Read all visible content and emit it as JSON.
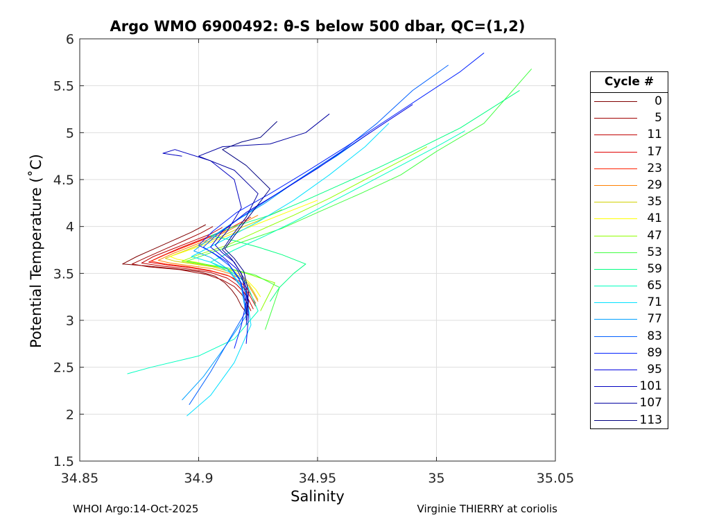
{
  "chart_data": {
    "type": "line",
    "title": "Argo WMO 6900492: θ-S below 500 dbar,  QC=(1,2)",
    "xlabel": "Salinity",
    "ylabel": "Potential Temperature (˚C)",
    "xlim": [
      34.85,
      35.05
    ],
    "ylim": [
      1.5,
      6
    ],
    "xticks": [
      34.85,
      34.9,
      34.95,
      35,
      35.05
    ],
    "xtick_labels": [
      "34.85",
      "34.9",
      "34.95",
      "35",
      "35.05"
    ],
    "yticks": [
      1.5,
      2,
      2.5,
      3,
      3.5,
      4,
      4.5,
      5,
      5.5,
      6
    ],
    "ytick_labels": [
      "1.5",
      "2",
      "2.5",
      "3",
      "3.5",
      "4",
      "4.5",
      "5",
      "5.5",
      "6"
    ],
    "grid": true,
    "legend_title": "Cycle #",
    "legend_position": "outside-right",
    "series": [
      {
        "name": "0",
        "color": "#800000",
        "s": [
          34.921,
          34.918,
          34.916,
          34.914,
          34.911,
          34.907,
          34.9,
          34.89,
          34.878,
          34.868,
          34.874,
          34.882,
          34.89,
          34.897,
          34.903
        ],
        "t": [
          3.05,
          3.15,
          3.25,
          3.32,
          3.4,
          3.47,
          3.52,
          3.55,
          3.58,
          3.6,
          3.68,
          3.77,
          3.86,
          3.94,
          4.02
        ]
      },
      {
        "name": "5",
        "color": "#a00000",
        "s": [
          34.922,
          34.92,
          34.918,
          34.915,
          34.91,
          34.903,
          34.892,
          34.879,
          34.872,
          34.878,
          34.886,
          34.894,
          34.901,
          34.906
        ],
        "t": [
          3.1,
          3.2,
          3.28,
          3.36,
          3.43,
          3.49,
          3.54,
          3.57,
          3.6,
          3.67,
          3.76,
          3.85,
          3.93,
          4.0
        ]
      },
      {
        "name": "11",
        "color": "#c00000",
        "s": [
          34.923,
          34.921,
          34.919,
          34.916,
          34.912,
          34.905,
          34.895,
          34.884,
          34.876,
          34.881,
          34.889,
          34.897,
          34.905,
          34.91
        ],
        "t": [
          3.12,
          3.22,
          3.3,
          3.38,
          3.45,
          3.51,
          3.55,
          3.58,
          3.61,
          3.68,
          3.76,
          3.84,
          3.92,
          3.99
        ]
      },
      {
        "name": "17",
        "color": "#e00000",
        "s": [
          34.924,
          34.922,
          34.92,
          34.917,
          34.913,
          34.906,
          34.897,
          34.887,
          34.879,
          34.884,
          34.892,
          34.9,
          34.908,
          34.913
        ],
        "t": [
          3.15,
          3.24,
          3.32,
          3.4,
          3.47,
          3.52,
          3.56,
          3.59,
          3.62,
          3.68,
          3.77,
          3.85,
          3.93,
          4.0
        ]
      },
      {
        "name": "23",
        "color": "#ff2000",
        "s": [
          34.924,
          34.922,
          34.92,
          34.917,
          34.912,
          34.905,
          34.896,
          34.886,
          34.88,
          34.886,
          34.894,
          34.902,
          34.91,
          34.916,
          34.922
        ],
        "t": [
          3.18,
          3.27,
          3.35,
          3.42,
          3.48,
          3.53,
          3.57,
          3.6,
          3.63,
          3.7,
          3.78,
          3.86,
          3.94,
          4.02,
          4.1
        ]
      },
      {
        "name": "29",
        "color": "#ff8000",
        "s": [
          34.925,
          34.923,
          34.921,
          34.918,
          34.913,
          34.906,
          34.897,
          34.888,
          34.883,
          34.889,
          34.897,
          34.905,
          34.912,
          34.918,
          34.925
        ],
        "t": [
          3.2,
          3.29,
          3.37,
          3.44,
          3.5,
          3.55,
          3.58,
          3.61,
          3.64,
          3.71,
          3.79,
          3.87,
          3.95,
          4.03,
          4.12
        ]
      },
      {
        "name": "35",
        "color": "#d0d000",
        "s": [
          34.925,
          34.923,
          34.921,
          34.918,
          34.913,
          34.906,
          34.898,
          34.89,
          34.886,
          34.893,
          34.901,
          34.909,
          34.916,
          34.925,
          34.935
        ],
        "t": [
          3.22,
          3.31,
          3.39,
          3.46,
          3.52,
          3.57,
          3.6,
          3.63,
          3.66,
          3.73,
          3.81,
          3.89,
          3.97,
          4.06,
          4.18
        ]
      },
      {
        "name": "41",
        "color": "#ffff00",
        "s": [
          34.926,
          34.924,
          34.921,
          34.918,
          34.913,
          34.906,
          34.899,
          34.891,
          34.888,
          34.896,
          34.905,
          34.914,
          34.924,
          34.936,
          34.95
        ],
        "t": [
          3.25,
          3.33,
          3.41,
          3.48,
          3.54,
          3.58,
          3.62,
          3.65,
          3.68,
          3.75,
          3.83,
          3.92,
          4.02,
          4.14,
          4.28
        ]
      },
      {
        "name": "47",
        "color": "#90ff00",
        "s": [
          34.926,
          34.928,
          34.93,
          34.932,
          34.92,
          34.91,
          34.9,
          34.893,
          34.9,
          34.912,
          34.925,
          34.94,
          34.955,
          34.97,
          34.985,
          34.996
        ],
        "t": [
          3.1,
          3.2,
          3.3,
          3.4,
          3.5,
          3.56,
          3.6,
          3.63,
          3.7,
          3.8,
          3.95,
          4.12,
          4.3,
          4.5,
          4.7,
          4.85
        ]
      },
      {
        "name": "53",
        "color": "#40ff40",
        "s": [
          34.928,
          34.93,
          34.932,
          34.934,
          34.924,
          34.912,
          34.902,
          34.895,
          34.905,
          34.92,
          34.935,
          34.95,
          34.968,
          34.985,
          35.0,
          35.02,
          35.04
        ],
        "t": [
          2.9,
          3.05,
          3.2,
          3.35,
          3.48,
          3.56,
          3.6,
          3.63,
          3.72,
          3.85,
          3.98,
          4.15,
          4.35,
          4.55,
          4.8,
          5.1,
          5.68
        ]
      },
      {
        "name": "59",
        "color": "#00ff80",
        "s": [
          34.93,
          34.934,
          34.94,
          34.945,
          34.935,
          34.925,
          34.915,
          34.905,
          34.915,
          34.93,
          34.945,
          34.96,
          34.975,
          34.99,
          35.01,
          35.035
        ],
        "t": [
          3.2,
          3.35,
          3.5,
          3.6,
          3.7,
          3.78,
          3.85,
          3.9,
          4.0,
          4.12,
          4.28,
          4.45,
          4.62,
          4.8,
          5.05,
          5.45
        ]
      },
      {
        "name": "65",
        "color": "#00ffc0",
        "s": [
          34.87,
          34.88,
          34.9,
          34.915,
          34.925,
          34.92,
          34.912,
          34.905,
          34.915,
          34.928,
          34.94,
          34.955,
          34.97,
          34.985,
          35.0,
          35.012
        ],
        "t": [
          2.43,
          2.5,
          2.62,
          2.8,
          3.1,
          3.4,
          3.55,
          3.62,
          3.75,
          3.9,
          4.05,
          4.25,
          4.45,
          4.65,
          4.85,
          5.02
        ]
      },
      {
        "name": "71",
        "color": "#00e0ff",
        "s": [
          34.895,
          34.905,
          34.915,
          34.922,
          34.92,
          34.914,
          34.905,
          34.897,
          34.91,
          34.925,
          34.94,
          34.955,
          34.97,
          34.98
        ],
        "t": [
          1.98,
          2.2,
          2.55,
          2.95,
          3.3,
          3.5,
          3.62,
          3.68,
          3.85,
          4.05,
          4.28,
          4.55,
          4.85,
          5.1
        ]
      },
      {
        "name": "77",
        "color": "#00a0ff",
        "s": [
          34.893,
          34.902,
          34.912,
          34.92,
          34.918,
          34.912,
          34.905,
          34.898,
          34.905,
          34.915,
          34.928,
          34.942,
          34.958,
          34.972
        ],
        "t": [
          2.15,
          2.4,
          2.75,
          3.05,
          3.35,
          3.55,
          3.67,
          3.74,
          3.88,
          4.05,
          4.25,
          4.5,
          4.75,
          5.0
        ]
      },
      {
        "name": "83",
        "color": "#0060ff",
        "s": [
          34.896,
          34.905,
          34.913,
          34.92,
          34.918,
          34.913,
          34.907,
          34.902,
          34.908,
          34.918,
          34.93,
          34.945,
          34.96,
          34.975,
          34.99,
          35.005
        ],
        "t": [
          2.1,
          2.45,
          2.8,
          3.1,
          3.4,
          3.58,
          3.7,
          3.78,
          3.92,
          4.1,
          4.3,
          4.55,
          4.8,
          5.1,
          5.45,
          5.72
        ]
      },
      {
        "name": "89",
        "color": "#0020ff",
        "s": [
          34.915,
          34.918,
          34.92,
          34.917,
          34.912,
          34.906,
          34.9,
          34.906,
          34.916,
          34.93,
          34.945,
          34.962,
          34.98,
          34.995,
          35.01,
          35.02
        ],
        "t": [
          2.7,
          2.95,
          3.2,
          3.45,
          3.62,
          3.72,
          3.8,
          3.95,
          4.15,
          4.35,
          4.58,
          4.85,
          5.15,
          5.4,
          5.65,
          5.85
        ]
      },
      {
        "name": "95",
        "color": "#0000e0",
        "s": [
          34.92,
          34.921,
          34.92,
          34.916,
          34.91,
          34.905,
          34.91,
          34.92,
          34.935,
          34.95,
          34.965,
          34.978,
          34.99
        ],
        "t": [
          2.75,
          3.05,
          3.35,
          3.55,
          3.68,
          3.78,
          3.95,
          4.15,
          4.38,
          4.62,
          4.88,
          5.1,
          5.3
        ]
      },
      {
        "name": "101",
        "color": "#0000c0",
        "s": [
          34.92,
          34.921,
          34.919,
          34.915,
          34.91,
          34.907,
          34.912,
          34.918,
          34.915,
          34.905,
          34.89,
          34.885,
          34.893
        ],
        "t": [
          2.95,
          3.2,
          3.45,
          3.62,
          3.72,
          3.8,
          3.95,
          4.2,
          4.5,
          4.7,
          4.82,
          4.78,
          4.75
        ]
      },
      {
        "name": "107",
        "color": "#0000a0",
        "s": [
          34.92,
          34.92,
          34.918,
          34.914,
          34.91,
          34.914,
          34.92,
          34.925,
          34.915,
          34.9,
          34.91,
          34.93,
          34.945,
          34.955
        ],
        "t": [
          3.0,
          3.25,
          3.5,
          3.65,
          3.75,
          3.9,
          4.1,
          4.35,
          4.6,
          4.75,
          4.85,
          4.88,
          5.0,
          5.2
        ]
      },
      {
        "name": "113",
        "color": "#000080",
        "s": [
          34.92,
          34.921,
          34.919,
          34.915,
          34.911,
          34.915,
          34.921,
          34.93,
          34.92,
          34.91,
          34.918,
          34.926,
          34.933
        ],
        "t": [
          3.05,
          3.3,
          3.52,
          3.66,
          3.76,
          3.9,
          4.1,
          4.4,
          4.65,
          4.82,
          4.9,
          4.95,
          5.12
        ]
      }
    ]
  },
  "footer": {
    "left": "WHOI Argo:14-Oct-2025",
    "right": "Virginie THIERRY at coriolis"
  }
}
